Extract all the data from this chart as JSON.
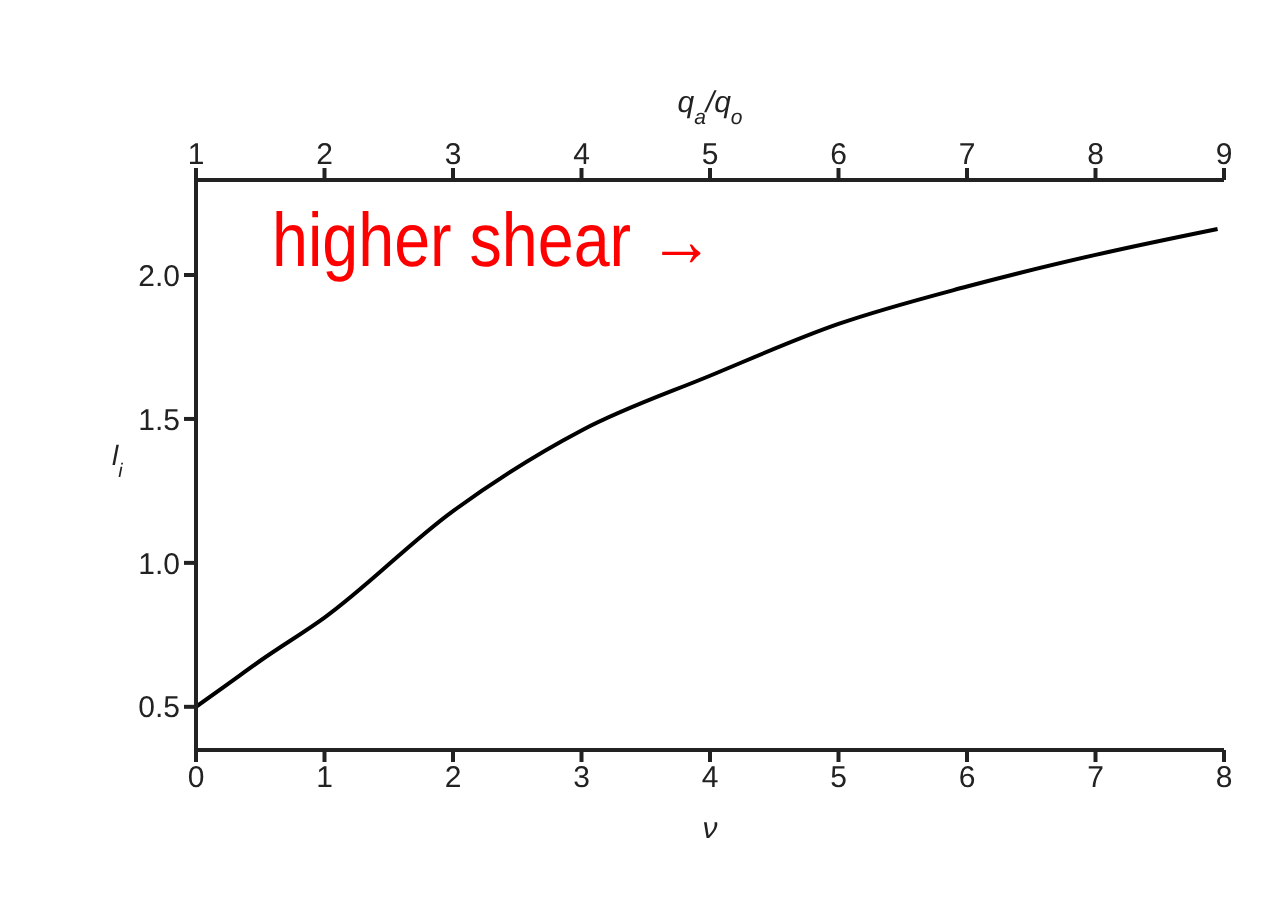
{
  "chart_data": {
    "type": "line",
    "xlabel": "ν",
    "ylabel": "l$_{i}$",
    "x2label": "q$_{a}$/q$_{o}$",
    "x": [
      0,
      0.25,
      0.5,
      1,
      2,
      3,
      4,
      5,
      6,
      7,
      7.95
    ],
    "series": [
      {
        "color": "#000000",
        "values": [
          0.5,
          0.58,
          0.66,
          0.81,
          1.18,
          1.46,
          1.65,
          1.83,
          1.96,
          2.07,
          2.16
        ]
      }
    ],
    "xlim": [
      0,
      8
    ],
    "xticks": [
      0,
      1,
      2,
      3,
      4,
      5,
      6,
      7,
      8
    ],
    "x2lim": [
      1,
      9
    ],
    "x2ticks": [
      1,
      2,
      3,
      4,
      5,
      6,
      7,
      8,
      9
    ],
    "ylim": [
      0.35,
      2.33
    ],
    "yticks": [
      {
        "value": 0.5,
        "label": "0.5"
      },
      {
        "value": 1,
        "label": "1.0"
      },
      {
        "value": 1.5,
        "label": "1.5"
      },
      {
        "value": 2,
        "label": "2.0"
      }
    ],
    "grid": false,
    "annotations": [
      "higher shear →"
    ]
  }
}
